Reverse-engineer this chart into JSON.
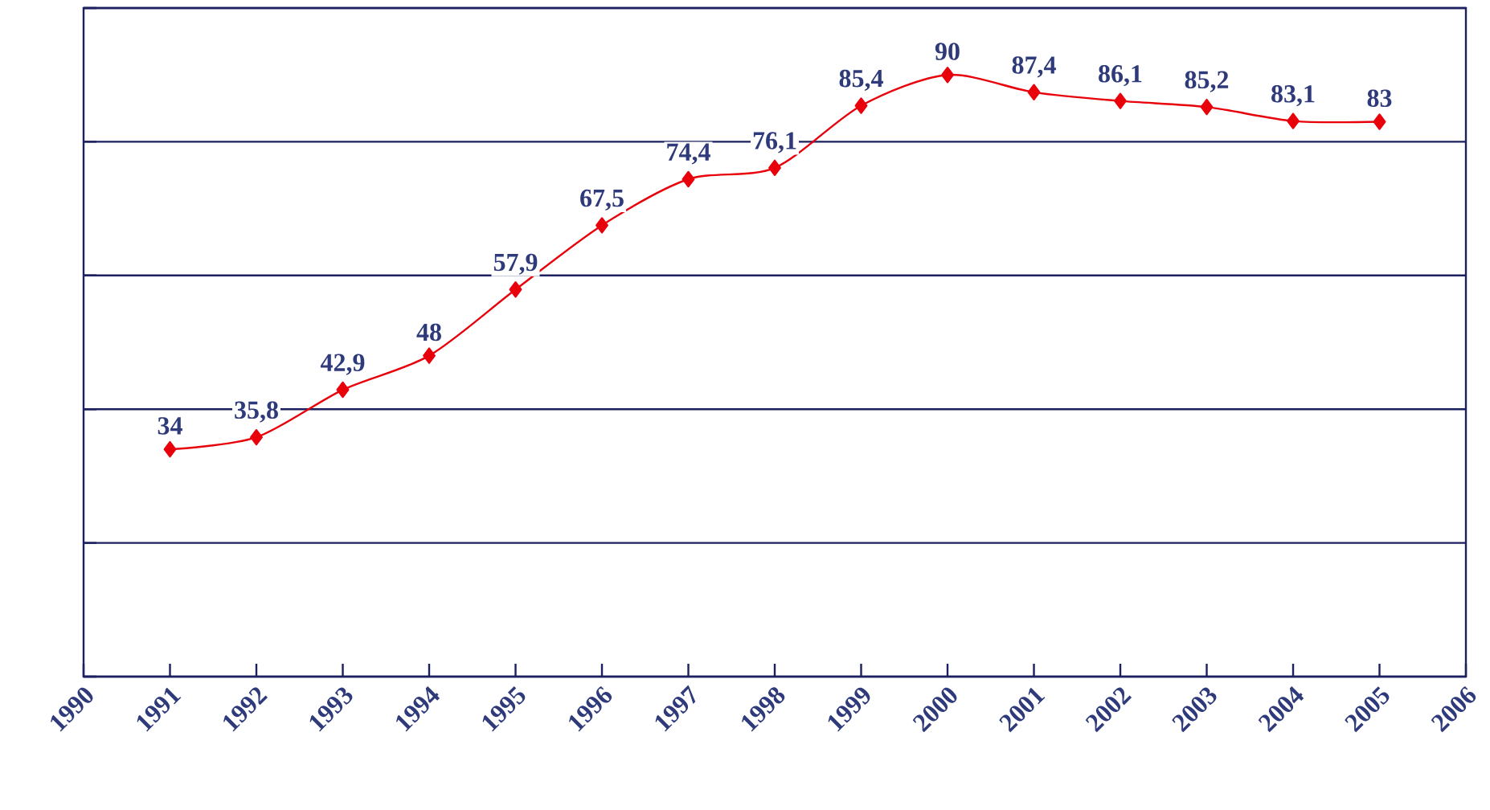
{
  "chart_data": {
    "type": "line",
    "x": [
      1991,
      1992,
      1993,
      1994,
      1995,
      1996,
      1997,
      1998,
      1999,
      2000,
      2001,
      2002,
      2003,
      2004,
      2005
    ],
    "series": [
      {
        "color": "#e8000b",
        "values": [
          34,
          35.8,
          42.9,
          48,
          57.9,
          67.5,
          74.4,
          76.1,
          85.4,
          90,
          87.4,
          86.1,
          85.2,
          83.1,
          83
        ],
        "value_labels": [
          "34",
          "35,8",
          "42,9",
          "48",
          "57,9",
          "67,5",
          "74,4",
          "76,1",
          "85,4",
          "90",
          "87,4",
          "86,1",
          "85,2",
          "83,1",
          "83"
        ]
      }
    ],
    "xlim": [
      1990,
      2006
    ],
    "xticks": [
      1990,
      1991,
      1992,
      1993,
      1994,
      1995,
      1996,
      1997,
      1998,
      1999,
      2000,
      2001,
      2002,
      2003,
      2004,
      2005,
      2006
    ],
    "ylim": [
      0,
      100
    ],
    "yticks": [
      {
        "value": 0,
        "label": null
      },
      {
        "value": 20,
        "label": null
      },
      {
        "value": 40,
        "label": null
      },
      {
        "value": 60,
        "label": null
      },
      {
        "value": 80,
        "label": null
      },
      {
        "value": 100,
        "label": null
      }
    ],
    "grid": "y",
    "tick_labels": "x",
    "marker": "diamond",
    "line_style": "solid"
  }
}
